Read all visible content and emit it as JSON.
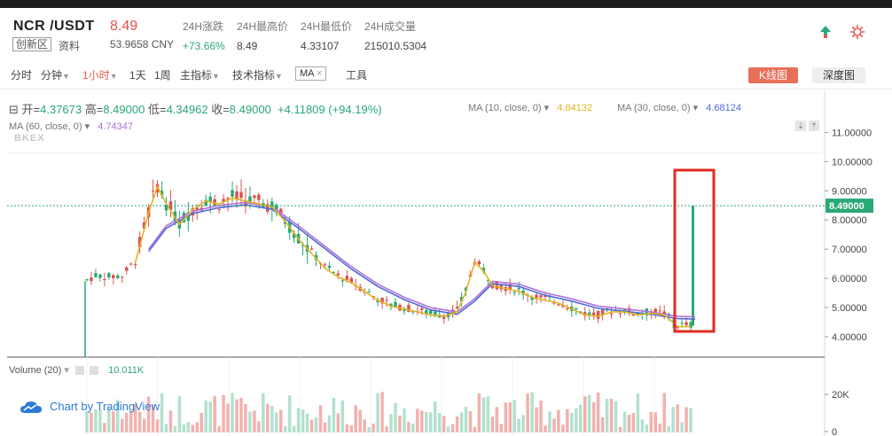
{
  "ticker": {
    "pair": "NCR /USDT",
    "last_price": "8.49",
    "board_tag": "创新区",
    "info_link": "资料",
    "cny_price": "53.9658 CNY",
    "stats": [
      {
        "label": "24H涨跌",
        "value": "+73.66%",
        "up": true
      },
      {
        "label": "24H最高价",
        "value": "8.49",
        "up": false
      },
      {
        "label": "24H最低价",
        "value": "4.33107",
        "up": false
      },
      {
        "label": "24H成交量",
        "value": "215010.5304",
        "up": false
      }
    ],
    "icons": [
      "growth-icon",
      "settings-icon"
    ]
  },
  "toolbar": {
    "time": "分时",
    "minute": "分钟",
    "hour": "1小时",
    "day": "1天",
    "week": "1周",
    "main_indicator": "主指标",
    "tech_indicator": "技术指标",
    "ma_chip": "MA",
    "ma_close": "×",
    "tools": "工具",
    "kline": "K线图",
    "depth": "深度图"
  },
  "legend": {
    "collapse": "⊟",
    "open_k": "开=",
    "open_v": "4.37673",
    "high_k": "高=",
    "high_v": "8.49000",
    "low_k": "低=",
    "low_v": "4.34962",
    "close_k": "收=",
    "close_v": "8.49000",
    "change": "+4.11809 (+94.19%)",
    "ma10_label": "MA (10, close, 0)",
    "ma10_value": "4.84132",
    "ma30_label": "MA (30, close, 0)",
    "ma30_value": "4.68124",
    "ma60_label": "MA (60, close, 0)",
    "ma60_value": "4.74347",
    "watermark": "BKEX"
  },
  "volume": {
    "label": "Volume (20)",
    "value": "10.011K"
  },
  "tradingview": "Chart by TradingView",
  "colors": {
    "up": "#2aa876",
    "down": "#d9534f",
    "ma10": "#e6b422",
    "ma30": "#4f6bd8",
    "ma60": "#b070d8",
    "highlight": "#e02b20",
    "accent": "#e8705a"
  },
  "chart_data": {
    "type": "candlestick",
    "price_axis": {
      "ticks": [
        "11.00000",
        "10.00000",
        "9.00000",
        "8.00000",
        "7.00000",
        "6.00000",
        "5.00000",
        "4.00000"
      ],
      "range": [
        3.3,
        11.5
      ]
    },
    "current_price_label": "8.49000",
    "volume_axis": {
      "ticks": [
        "20K",
        "0"
      ]
    },
    "close_path": [
      [
        0,
        5.95
      ],
      [
        2,
        6.1
      ],
      [
        5,
        6.05
      ],
      [
        8,
        6.1
      ],
      [
        11,
        6.6
      ],
      [
        14,
        8.3
      ],
      [
        16,
        9.2
      ],
      [
        18,
        8.6
      ],
      [
        21,
        7.9
      ],
      [
        24,
        8.4
      ],
      [
        27,
        8.7
      ],
      [
        30,
        8.6
      ],
      [
        33,
        8.8
      ],
      [
        36,
        8.7
      ],
      [
        39,
        8.6
      ],
      [
        42,
        8.5
      ],
      [
        45,
        8.0
      ],
      [
        48,
        7.4
      ],
      [
        51,
        6.9
      ],
      [
        54,
        6.4
      ],
      [
        57,
        6.1
      ],
      [
        60,
        5.9
      ],
      [
        63,
        5.6
      ],
      [
        66,
        5.3
      ],
      [
        69,
        5.1
      ],
      [
        72,
        5.0
      ],
      [
        75,
        4.9
      ],
      [
        78,
        4.8
      ],
      [
        81,
        4.75
      ],
      [
        84,
        4.9
      ],
      [
        86,
        5.6
      ],
      [
        88,
        6.6
      ],
      [
        90,
        6.3
      ],
      [
        92,
        5.8
      ],
      [
        95,
        5.7
      ],
      [
        98,
        5.6
      ],
      [
        101,
        5.4
      ],
      [
        104,
        5.3
      ],
      [
        107,
        5.2
      ],
      [
        110,
        5.0
      ],
      [
        113,
        4.8
      ],
      [
        116,
        4.75
      ],
      [
        119,
        4.9
      ],
      [
        122,
        4.9
      ],
      [
        125,
        4.8
      ],
      [
        128,
        4.85
      ],
      [
        131,
        4.8
      ],
      [
        134,
        4.4
      ],
      [
        137,
        4.4
      ],
      [
        138,
        8.49
      ]
    ],
    "ma30_path": [
      [
        14,
        7.0
      ],
      [
        18,
        7.8
      ],
      [
        24,
        8.3
      ],
      [
        30,
        8.5
      ],
      [
        36,
        8.6
      ],
      [
        42,
        8.45
      ],
      [
        48,
        7.8
      ],
      [
        54,
        7.1
      ],
      [
        60,
        6.4
      ],
      [
        66,
        5.8
      ],
      [
        72,
        5.35
      ],
      [
        78,
        5.0
      ],
      [
        84,
        4.85
      ],
      [
        88,
        5.3
      ],
      [
        92,
        5.9
      ],
      [
        98,
        5.8
      ],
      [
        104,
        5.5
      ],
      [
        110,
        5.3
      ],
      [
        116,
        5.05
      ],
      [
        122,
        4.95
      ],
      [
        128,
        4.85
      ],
      [
        134,
        4.7
      ],
      [
        138,
        4.68
      ]
    ]
  }
}
